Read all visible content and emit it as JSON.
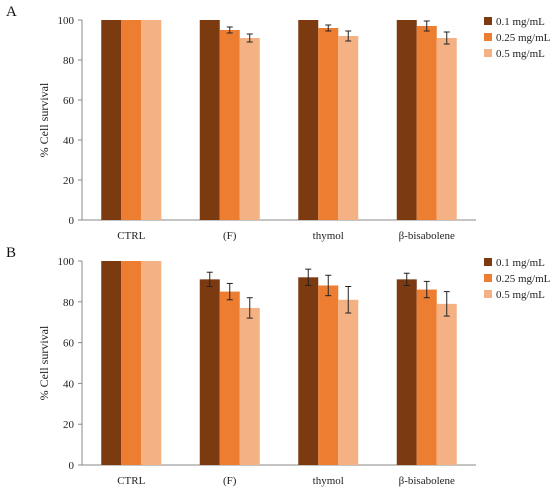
{
  "chart_data": [
    {
      "panel": "A",
      "type": "bar",
      "categories": [
        "CTRL",
        "(F)",
        "thymol",
        "β-bisabolene"
      ],
      "ylabel": "% Cell survival",
      "ylim": [
        0,
        100
      ],
      "yticks": [
        0,
        20,
        40,
        60,
        80,
        100
      ],
      "grid": false,
      "legend": "right",
      "series": [
        {
          "name": "0.1 mg/mL",
          "color": "#7B3A10",
          "values": [
            100,
            100,
            100,
            100
          ],
          "errors": [
            0,
            0,
            0,
            0
          ]
        },
        {
          "name": "0.25 mg/mL",
          "color": "#ED7D31",
          "values": [
            100,
            95,
            96,
            97
          ],
          "errors": [
            0,
            1.5,
            1.5,
            2.5
          ]
        },
        {
          "name": "0.5 mg/mL",
          "color": "#F4B183",
          "values": [
            100,
            91,
            92,
            91
          ],
          "errors": [
            0,
            2,
            2.5,
            3
          ]
        }
      ]
    },
    {
      "panel": "B",
      "type": "bar",
      "categories": [
        "CTRL",
        "(F)",
        "thymol",
        "β-bisabolene"
      ],
      "ylabel": "% Cell survival",
      "ylim": [
        0,
        100
      ],
      "yticks": [
        0,
        20,
        40,
        60,
        80,
        100
      ],
      "grid": false,
      "legend": "right",
      "series": [
        {
          "name": "0.1 mg/mL",
          "color": "#7B3A10",
          "values": [
            100,
            91,
            92,
            91
          ],
          "errors": [
            0,
            3.5,
            4,
            3
          ]
        },
        {
          "name": "0.25 mg/mL",
          "color": "#ED7D31",
          "values": [
            100,
            85,
            88,
            86
          ],
          "errors": [
            0,
            4,
            5,
            4
          ]
        },
        {
          "name": "0.5 mg/mL",
          "color": "#F4B183",
          "values": [
            100,
            77,
            81,
            79
          ],
          "errors": [
            0,
            5,
            6.5,
            6
          ]
        }
      ]
    }
  ]
}
